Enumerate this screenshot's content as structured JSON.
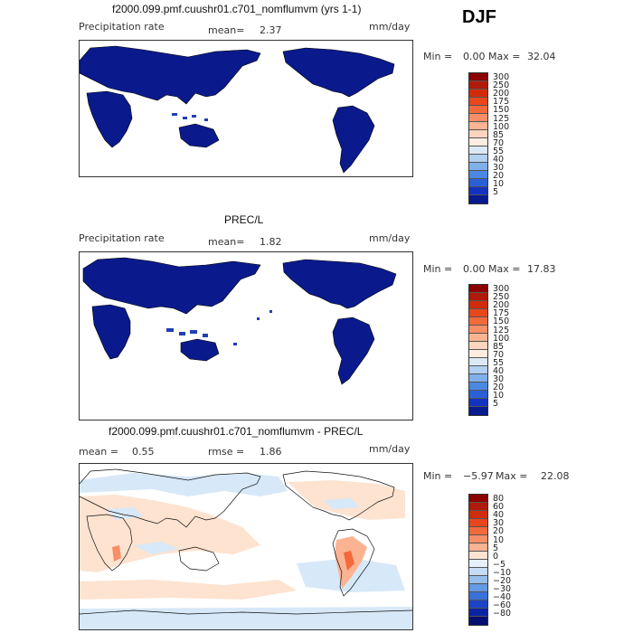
{
  "season": "DJF",
  "panels": [
    {
      "title": "f2000.099.pmf.cuushr01.c701_nomflumvm (yrs 1-1)",
      "left_label": "Precipitation rate",
      "mid_label": "mean=",
      "mid_value": "2.37",
      "units": "mm/day",
      "min_label": "Min =",
      "min_value": "0.00",
      "max_label": "Max =",
      "max_value": "32.04",
      "colorbar_labels": [
        "300",
        "250",
        "200",
        "175",
        "150",
        "125",
        "100",
        "85",
        "70",
        "55",
        "40",
        "30",
        "20",
        "10",
        "5"
      ],
      "colorbar_colors": [
        "#8b0000",
        "#b01a08",
        "#d02c0c",
        "#e8461c",
        "#f26a3c",
        "#f88e66",
        "#fbb392",
        "#fdd4be",
        "#fdece0",
        "#dbe9f6",
        "#b2d0f0",
        "#7fb0ea",
        "#4b88e2",
        "#2a5fd6",
        "#1432c0",
        "#071a8e"
      ]
    },
    {
      "title": "PREC/L",
      "left_label": "Precipitation rate",
      "mid_label": "mean=",
      "mid_value": "1.82",
      "units": "mm/day",
      "min_label": "Min =",
      "min_value": "0.00",
      "max_label": "Max =",
      "max_value": "17.83",
      "colorbar_labels": [
        "300",
        "250",
        "200",
        "175",
        "150",
        "125",
        "100",
        "85",
        "70",
        "55",
        "40",
        "30",
        "20",
        "10",
        "5"
      ],
      "colorbar_colors": [
        "#8b0000",
        "#b01a08",
        "#d02c0c",
        "#e8461c",
        "#f26a3c",
        "#f88e66",
        "#fbb392",
        "#fdd4be",
        "#fdece0",
        "#dbe9f6",
        "#b2d0f0",
        "#7fb0ea",
        "#4b88e2",
        "#2a5fd6",
        "#1432c0",
        "#071a8e"
      ]
    },
    {
      "title": "f2000.099.pmf.cuushr01.c701_nomflumvm - PREC/L",
      "left_label": "mean =",
      "left_value": "0.55",
      "mid_label": "rmse =",
      "mid_value": "1.86",
      "units": "mm/day",
      "min_label": "Min =",
      "min_value": "−5.97",
      "max_label": "Max =",
      "max_value": "22.08",
      "colorbar_labels": [
        "80",
        "60",
        "40",
        "30",
        "20",
        "10",
        "5",
        "0",
        "−5",
        "−10",
        "−20",
        "−30",
        "−40",
        "−60",
        "−80"
      ],
      "colorbar_colors": [
        "#8b0000",
        "#b01a08",
        "#d02c0c",
        "#e8461c",
        "#f26a3c",
        "#f88e66",
        "#fbb392",
        "#fde3d0",
        "#e6f0fa",
        "#c6dcf4",
        "#96bdec",
        "#6499e4",
        "#3a70da",
        "#1c44c8",
        "#0a22a4",
        "#050f70"
      ]
    }
  ],
  "colors": {
    "land_wet": "#0a1a8c",
    "land_mid": "#1f3fb4",
    "diff_pos": "#fde3d0",
    "diff_neg": "#d7e8f8",
    "ocean": "#ffffff"
  }
}
